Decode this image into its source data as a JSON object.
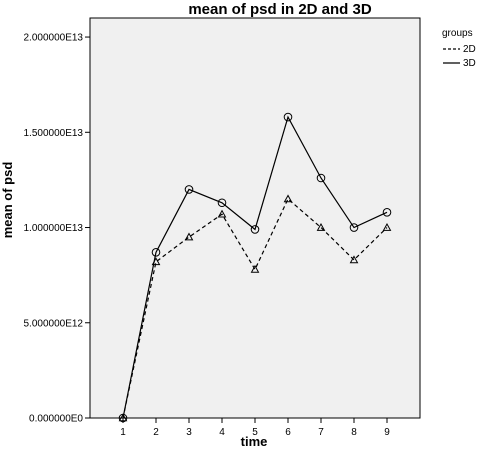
{
  "chart_data": {
    "type": "line",
    "title": "mean of psd in 2D and 3D",
    "xlabel": "time",
    "ylabel": "mean of psd",
    "x": [
      1,
      2,
      3,
      4,
      5,
      6,
      7,
      8,
      9
    ],
    "xlim": [
      0,
      10
    ],
    "ylim": [
      0,
      21000000000000.0
    ],
    "y_ticks": [
      0,
      5000000000000.0,
      10000000000000.0,
      15000000000000.0,
      20000000000000.0
    ],
    "y_tick_labels": [
      "0.000000E0",
      "5.000000E12",
      "1.000000E13",
      "1.500000E13",
      "2.000000E13"
    ],
    "x_tick_labels": [
      "1",
      "2",
      "3",
      "4",
      "5",
      "6",
      "7",
      "8",
      "9"
    ],
    "legend_title": "groups",
    "legend_position": "right",
    "grid": false,
    "background_color": "#f0f0f0",
    "line_color": "#000000",
    "series": [
      {
        "name": "2D",
        "line_style": "dashed",
        "marker": "triangle",
        "values": [
          0,
          8200000000000.0,
          9500000000000.0,
          10700000000000.0,
          7800000000000.0,
          11500000000000.0,
          10000000000000.0,
          8300000000000.0,
          10000000000000.0
        ]
      },
      {
        "name": "3D",
        "line_style": "solid",
        "marker": "circle",
        "values": [
          0,
          8700000000000.0,
          12000000000000.0,
          11300000000000.0,
          9900000000000.0,
          15800000000000.0,
          12600000000000.0,
          10000000000000.0,
          10800000000000.0
        ]
      }
    ]
  }
}
